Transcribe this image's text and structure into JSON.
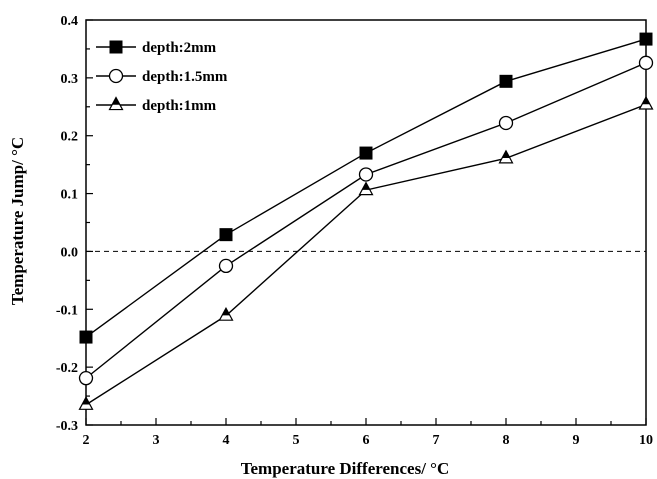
{
  "chart_data": {
    "type": "line",
    "title": "",
    "xlabel": "Temperature Differences/ °C",
    "ylabel": "Temperature Jump/ °C",
    "xlim": [
      2,
      10
    ],
    "ylim": [
      -0.3,
      0.4
    ],
    "x_ticks": [
      "2",
      "3",
      "4",
      "5",
      "6",
      "7",
      "8",
      "9",
      "10"
    ],
    "y_ticks": [
      "-0.3",
      "-0.2",
      "-0.1",
      "0.0",
      "0.1",
      "0.2",
      "0.3",
      "0.4"
    ],
    "grid": false,
    "legend_position": "top-left",
    "reference_line": {
      "y": 0.0,
      "x_range": [
        2,
        10
      ],
      "style": "dashed"
    },
    "series": [
      {
        "name": "depth:2mm",
        "marker": "filled-square",
        "x": [
          2,
          4,
          6,
          8,
          10
        ],
        "y": [
          -0.148,
          0.029,
          0.17,
          0.294,
          0.367
        ]
      },
      {
        "name": "depth:1.5mm",
        "marker": "open-circle",
        "x": [
          2,
          4,
          6,
          8,
          10
        ],
        "y": [
          -0.219,
          -0.025,
          0.133,
          0.222,
          0.326
        ]
      },
      {
        "name": "depth:1mm",
        "marker": "half-filled-triangle",
        "x": [
          2,
          4,
          6,
          8,
          10
        ],
        "y": [
          -0.265,
          -0.111,
          0.106,
          0.161,
          0.254
        ]
      }
    ],
    "colors": {
      "line": "#000000",
      "marker_fill": "#000000",
      "background": "#ffffff"
    }
  }
}
